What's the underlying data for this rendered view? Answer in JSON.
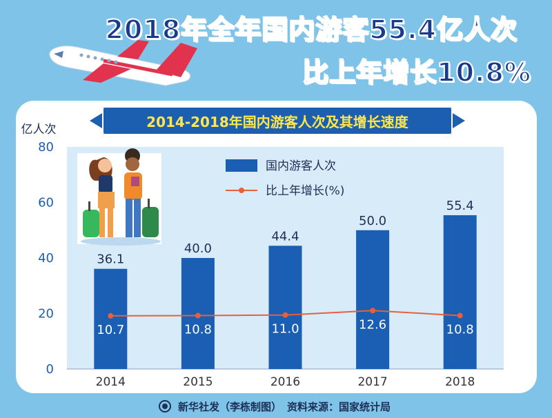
{
  "headline": {
    "line1": "2018年全年国内游客55.4亿人次",
    "line2": "比上年增长10.8%"
  },
  "footer": {
    "credit": "新华社发（李栋制图）",
    "source": "资料来源：国家统计局"
  },
  "colors": {
    "bar": "#1a5fb4",
    "line": "#e8603a",
    "headline": "#1b3a8c",
    "subtitle_text": "#ffe74a"
  },
  "chart_data": {
    "type": "bar",
    "title": "2014-2018年国内游客人次及其增长速度",
    "ylabel": "亿人次",
    "ylim": [
      0,
      80
    ],
    "yticks": [
      0,
      20,
      40,
      60,
      80
    ],
    "categories": [
      "2014",
      "2015",
      "2016",
      "2017",
      "2018"
    ],
    "series": [
      {
        "name": "国内游客人次",
        "type": "bar",
        "values": [
          36.1,
          40.0,
          44.4,
          50.0,
          55.4
        ],
        "labels": [
          "36.1",
          "40.0",
          "44.4",
          "50.0",
          "55.4"
        ]
      },
      {
        "name": "比上年增长(%)",
        "type": "line",
        "values": [
          10.7,
          10.8,
          11.0,
          12.6,
          10.8
        ],
        "labels": [
          "10.7",
          "10.8",
          "11.0",
          "12.6",
          "10.8"
        ]
      }
    ],
    "legend_position": "top-center",
    "grid": false
  }
}
